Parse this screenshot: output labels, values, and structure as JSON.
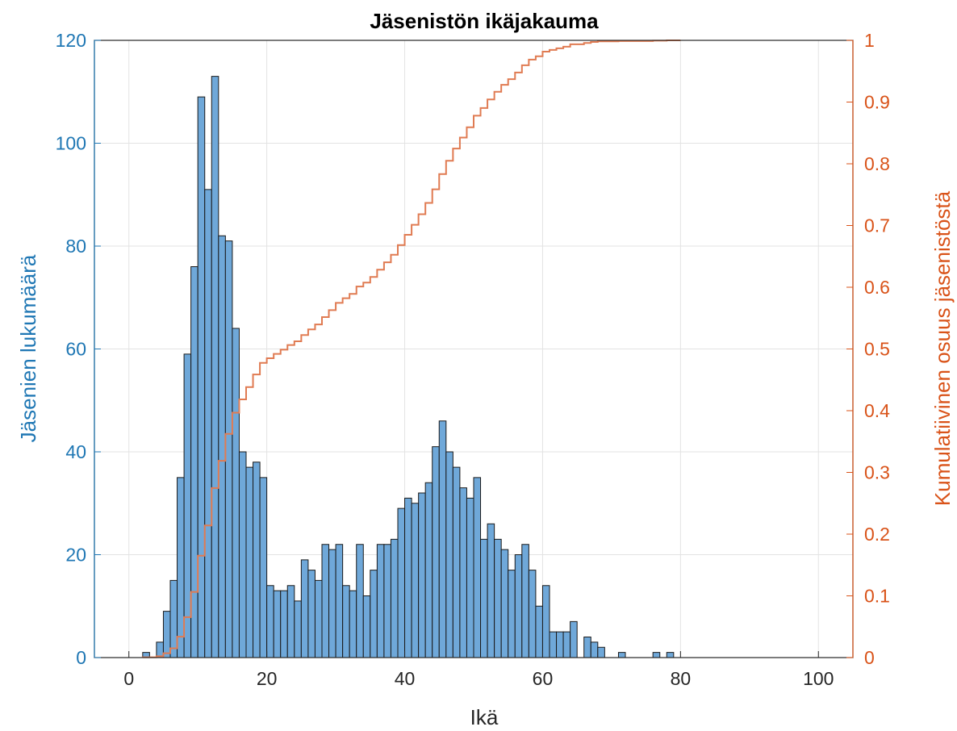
{
  "chart_data": {
    "type": "bar",
    "title": "Jäsenistön ikäjakauma",
    "xlabel": "Ikä",
    "ylabel_left": "Jäsenien lukumäärä",
    "ylabel_right": "Kumulatiivinen osuus jäsenistöstä",
    "xlim": [
      -5,
      105
    ],
    "ylim_left": [
      0,
      120
    ],
    "ylim_right": [
      0,
      1
    ],
    "xticks": [
      "0",
      "20",
      "40",
      "60",
      "80",
      "100"
    ],
    "yticks_left": [
      "0",
      "20",
      "40",
      "60",
      "80",
      "100",
      "120"
    ],
    "yticks_right": [
      "0",
      "0.1",
      "0.2",
      "0.3",
      "0.4",
      "0.5",
      "0.6",
      "0.7",
      "0.8",
      "0.9",
      "1"
    ],
    "grid": true,
    "bin_width": 1,
    "series": [
      {
        "axis": "left",
        "kind": "histogram",
        "bin_starts": [
          2,
          3,
          4,
          5,
          6,
          7,
          8,
          9,
          10,
          11,
          12,
          13,
          14,
          15,
          16,
          17,
          18,
          19,
          20,
          21,
          22,
          23,
          24,
          25,
          26,
          27,
          28,
          29,
          30,
          31,
          32,
          33,
          34,
          35,
          36,
          37,
          38,
          39,
          40,
          41,
          42,
          43,
          44,
          45,
          46,
          47,
          48,
          49,
          50,
          51,
          52,
          53,
          54,
          55,
          56,
          57,
          58,
          59,
          60,
          61,
          62,
          63,
          64,
          65,
          66,
          67,
          68,
          69,
          70,
          71,
          72,
          73,
          74,
          75,
          76,
          77,
          78,
          79
        ],
        "values": [
          1,
          0,
          3,
          9,
          15,
          35,
          59,
          76,
          109,
          91,
          113,
          82,
          81,
          64,
          40,
          37,
          38,
          35,
          14,
          13,
          13,
          14,
          11,
          19,
          17,
          15,
          22,
          21,
          22,
          14,
          13,
          22,
          12,
          17,
          22,
          22,
          23,
          29,
          31,
          30,
          32,
          34,
          41,
          46,
          40,
          37,
          33,
          31,
          35,
          23,
          26,
          23,
          21,
          17,
          20,
          22,
          17,
          10,
          14,
          5,
          5,
          5,
          7,
          0,
          4,
          3,
          2,
          0,
          0,
          1,
          0,
          0,
          0,
          0,
          1,
          0,
          1,
          0
        ]
      },
      {
        "axis": "right",
        "kind": "cumulative-stairs",
        "description_ref": "cumulative share of the histogram counts"
      }
    ],
    "colors": {
      "bars": "#6fa8d9",
      "bar_edge": "#1a1a1a",
      "left_axis": "#1f77b4",
      "right_axis": "#d95319",
      "cumulative_line": "#e07b52",
      "grid": "#e3e3e3"
    }
  }
}
